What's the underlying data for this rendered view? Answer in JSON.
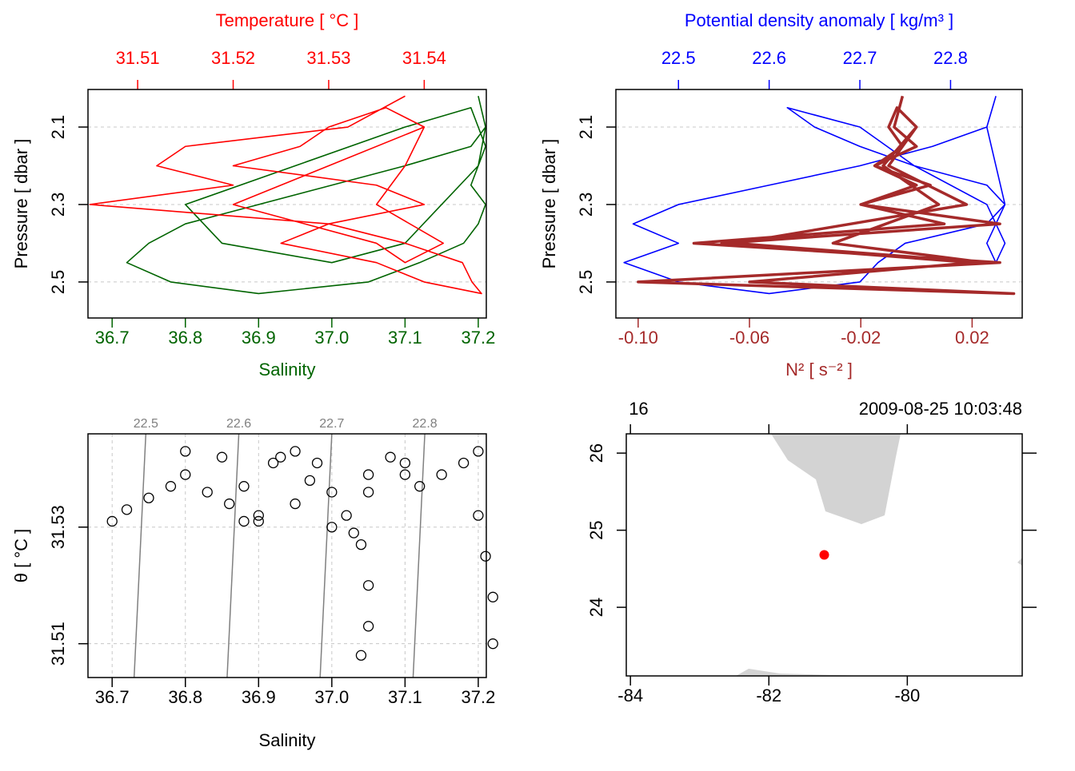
{
  "chart_data": [
    {
      "type": "profile",
      "x2label": "Temperature [ °C ]",
      "xlabel": "Salinity",
      "ylabel": "Pressure [ dbar ]",
      "pressure": [
        2.02,
        2.1,
        2.15,
        2.2,
        2.25,
        2.3,
        2.35,
        2.4,
        2.45,
        2.5,
        2.53,
        2.5,
        2.45,
        2.4,
        2.35,
        2.3,
        2.25,
        2.2,
        2.15,
        2.1,
        2.05,
        2.1,
        2.2,
        2.3,
        2.4,
        2.45,
        2.4,
        2.3,
        2.2,
        2.1
      ],
      "series": [
        {
          "color": "#006400",
          "axis": "x",
          "width": 1.6,
          "values": [
            37.2,
            37.21,
            37.19,
            37.1,
            37.0,
            36.9,
            36.8,
            36.75,
            36.72,
            36.78,
            36.9,
            37.05,
            37.12,
            37.18,
            37.2,
            37.21,
            37.19,
            37.2,
            37.21,
            37.2,
            37.19,
            37.1,
            36.95,
            36.8,
            36.85,
            37.0,
            37.1,
            37.15,
            37.2,
            37.21
          ]
        },
        {
          "color": "#ff0000",
          "axis": "x2",
          "width": 1.6,
          "values": [
            31.538,
            31.532,
            31.515,
            31.512,
            31.52,
            31.505,
            31.53,
            31.538,
            31.544,
            31.545,
            31.546,
            31.54,
            31.535,
            31.525,
            31.53,
            31.54,
            31.535,
            31.52,
            31.527,
            31.53,
            31.536,
            31.54,
            31.53,
            31.52,
            31.535,
            31.538,
            31.542,
            31.535,
            31.538,
            31.54
          ]
        }
      ],
      "xlim": [
        36.667,
        37.211
      ],
      "xticks": [
        36.7,
        36.8,
        36.9,
        {
          "value": 37,
          "label": "37.0"
        },
        37.1,
        37.2
      ],
      "x2lim": [
        31.5048,
        31.5465
      ],
      "x2ticks": [
        31.51,
        31.52,
        31.53,
        31.54
      ],
      "ylim": [
        2.593,
        2.003
      ],
      "yticks": [
        2.1,
        2.3,
        2.5
      ],
      "grid": "y"
    },
    {
      "type": "profile",
      "x2label": "Potential density anomaly [ kg/m³ ]",
      "xlabel": "N² [ s⁻² ]",
      "ylabel": "Pressure [ dbar ]",
      "pressure": [
        2.02,
        2.1,
        2.15,
        2.2,
        2.25,
        2.3,
        2.35,
        2.4,
        2.45,
        2.5,
        2.53,
        2.5,
        2.45,
        2.4,
        2.35,
        2.3,
        2.25,
        2.2,
        2.15,
        2.1,
        2.05,
        2.1,
        2.2,
        2.3,
        2.4,
        2.45,
        2.4,
        2.3,
        2.2,
        2.1
      ],
      "series": [
        {
          "color": "#0000ff",
          "axis": "x2",
          "width": 1.6,
          "values": [
            22.85,
            22.84,
            22.78,
            22.7,
            22.6,
            22.5,
            22.45,
            22.5,
            22.44,
            22.5,
            22.6,
            22.7,
            22.72,
            22.75,
            22.84,
            22.86,
            22.84,
            22.76,
            22.7,
            22.65,
            22.62,
            22.7,
            22.76,
            22.84,
            22.86,
            22.85,
            22.84,
            22.86,
            22.85,
            22.84
          ]
        },
        {
          "color": "#a52a2a",
          "axis": "x",
          "width": 3.5,
          "values": [
            -0.005,
            -0.008,
            0.0,
            -0.015,
            0.005,
            -0.02,
            0.01,
            -0.08,
            0.03,
            -0.1,
            0.035,
            -0.06,
            0.02,
            -0.07,
            0.03,
            -0.02,
            0.0,
            -0.015,
            -0.005,
            -0.01,
            -0.007,
            0.0,
            -0.012,
            0.008,
            -0.03,
            0.025,
            -0.065,
            0.018,
            -0.01,
            0.0
          ]
        }
      ],
      "xlim": [
        -0.108,
        0.038
      ],
      "xticks": [
        {
          "value": -0.1,
          "label": "-0.10"
        },
        -0.06,
        -0.02,
        0.02
      ],
      "x2lim": [
        22.431,
        22.879
      ],
      "x2ticks": [
        22.5,
        22.6,
        22.7,
        22.8
      ],
      "ylim": [
        2.593,
        2.003
      ],
      "yticks": [
        2.1,
        2.3,
        2.5
      ],
      "grid": "y"
    },
    {
      "type": "scatter",
      "xlabel": "Salinity",
      "ylabel": "θ [ °C ]",
      "x": [
        36.7,
        36.72,
        36.75,
        36.78,
        36.8,
        36.83,
        36.86,
        36.88,
        36.9,
        36.92,
        36.95,
        36.97,
        37.0,
        37.02,
        37.04,
        37.05,
        37.05,
        37.04,
        37.03,
        37.05,
        37.08,
        37.1,
        37.12,
        37.15,
        37.18,
        37.2,
        37.2,
        37.21,
        37.22,
        37.22,
        36.9,
        36.85,
        36.8,
        36.88,
        36.95,
        37.0,
        37.05,
        37.1,
        36.93,
        36.98
      ],
      "y": [
        31.531,
        31.533,
        31.535,
        31.537,
        31.539,
        31.536,
        31.534,
        31.531,
        31.532,
        31.541,
        31.543,
        31.538,
        31.536,
        31.532,
        31.527,
        31.52,
        31.513,
        31.508,
        31.529,
        31.539,
        31.542,
        31.541,
        31.537,
        31.539,
        31.541,
        31.543,
        31.532,
        31.525,
        31.518,
        31.51,
        31.531,
        31.542,
        31.543,
        31.537,
        31.534,
        31.53,
        31.536,
        31.539,
        31.542,
        31.541
      ],
      "color": "#000000",
      "isopycnals": {
        "levels": [
          22.5,
          22.6,
          22.7,
          22.8
        ],
        "salinity_bottom": [
          36.73,
          36.857,
          36.984,
          37.111
        ],
        "salinity_top": [
          36.746,
          36.873,
          37.0,
          37.127
        ],
        "color": "#808080"
      },
      "xlim": [
        36.667,
        37.211
      ],
      "xticks": [
        36.7,
        36.8,
        36.9,
        {
          "value": 37,
          "label": "37.0"
        },
        37.1,
        37.2
      ],
      "ylim": [
        31.5042,
        31.546
      ],
      "yticks": [
        31.51,
        31.53
      ],
      "grid": "both"
    },
    {
      "type": "map",
      "top_labels": [
        "16",
        "2009-08-25 10:03:48"
      ],
      "station": {
        "lon": -81.2,
        "lat": 24.68,
        "color": "#ff0000"
      },
      "land_color": "#d3d3d3",
      "xlim": [
        -84.06,
        -78.34
      ],
      "xticks": [
        -84,
        -82,
        -80
      ],
      "ylim": [
        23.11,
        26.25
      ],
      "yticks": [
        26,
        25,
        24
      ]
    }
  ]
}
